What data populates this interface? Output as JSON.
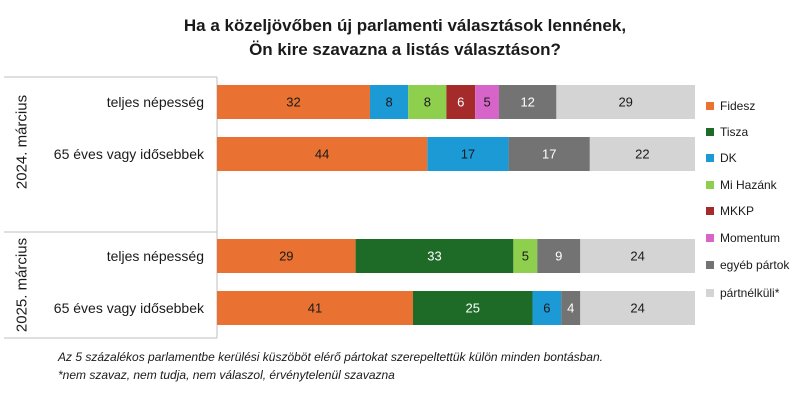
{
  "title_line1": "Ha a közeljövőben új parlamenti választások lennének,",
  "title_line2": "Ön kire szavazna a listás választáson?",
  "footnote1": "Az 5 százalékos parlamentbe kerülési küszöböt elérő pártokat szerepeltettük külön minden bontásban.",
  "footnote2": "*nem szavaz, nem tudja, nem válaszol, érvénytelenül szavazna",
  "chart_data": {
    "type": "bar",
    "orientation": "horizontal",
    "stacked": true,
    "xlim": [
      0,
      100
    ],
    "groups": [
      {
        "label": "2024. március",
        "rows": [
          {
            "label": "teljes népesség",
            "segments": [
              {
                "series": "Fidesz",
                "value": 32
              },
              {
                "series": "DK",
                "value": 8
              },
              {
                "series": "Mi Hazánk",
                "value": 8
              },
              {
                "series": "MKKP",
                "value": 6
              },
              {
                "series": "Momentum",
                "value": 5
              },
              {
                "series": "egyéb pártok",
                "value": 12
              },
              {
                "series": "pártnélküli*",
                "value": 29
              }
            ]
          },
          {
            "label": "65 éves vagy idősebbek",
            "segments": [
              {
                "series": "Fidesz",
                "value": 44
              },
              {
                "series": "DK",
                "value": 17
              },
              {
                "series": "egyéb pártok",
                "value": 17
              },
              {
                "series": "pártnélküli*",
                "value": 22
              }
            ]
          }
        ]
      },
      {
        "label": "2025. március",
        "rows": [
          {
            "label": "teljes népesség",
            "segments": [
              {
                "series": "Fidesz",
                "value": 29
              },
              {
                "series": "Tisza",
                "value": 33
              },
              {
                "series": "Mi Hazánk",
                "value": 5
              },
              {
                "series": "egyéb pártok",
                "value": 9
              },
              {
                "series": "pártnélküli*",
                "value": 24
              }
            ]
          },
          {
            "label": "65 éves vagy idősebbek",
            "segments": [
              {
                "series": "Fidesz",
                "value": 41
              },
              {
                "series": "Tisza",
                "value": 25
              },
              {
                "series": "DK",
                "value": 6
              },
              {
                "series": "egyéb pártok",
                "value": 4
              },
              {
                "series": "pártnélküli*",
                "value": 24
              }
            ]
          }
        ]
      }
    ],
    "series": [
      {
        "name": "Fidesz",
        "color": "#E97132",
        "label_color": "#1a1a1a"
      },
      {
        "name": "Tisza",
        "color": "#1E6B28",
        "label_color": "#ffffff"
      },
      {
        "name": "DK",
        "color": "#1B9AD6",
        "label_color": "#1a1a1a"
      },
      {
        "name": "Mi Hazánk",
        "color": "#8ED04E",
        "label_color": "#1a1a1a"
      },
      {
        "name": "MKKP",
        "color": "#A52A2A",
        "label_color": "#ffffff"
      },
      {
        "name": "Momentum",
        "color": "#D765C9",
        "label_color": "#1a1a1a"
      },
      {
        "name": "egyéb pártok",
        "color": "#737373",
        "label_color": "#ffffff"
      },
      {
        "name": "pártnélküli*",
        "color": "#D4D4D4",
        "label_color": "#1a1a1a"
      }
    ],
    "legend_position": "right"
  }
}
